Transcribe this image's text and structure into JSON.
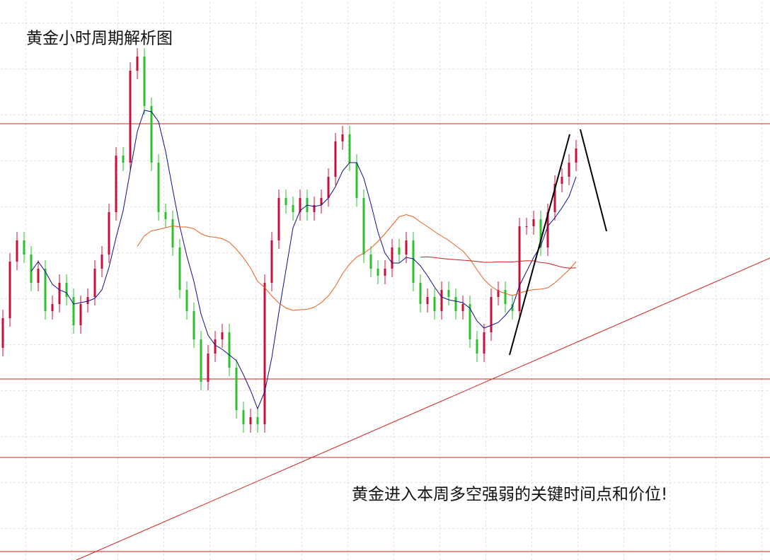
{
  "chart_data": {
    "type": "candlestick",
    "title": "黄金小时周期解析图",
    "annotation": "黄金进入本周多空强弱的关键时间点和价位!",
    "xlim": [
      -0.4,
      108.4
    ],
    "ylim": [
      0,
      792
    ],
    "up_color": "#c8103c",
    "down_color": "#2ec02e",
    "grid": true,
    "open": [
      300,
      342,
      422,
      452,
      432,
      392,
      412,
      352,
      362,
      392,
      372,
      332,
      362,
      372,
      412,
      432,
      492,
      572,
      562,
      692,
      712,
      642,
      562,
      492,
      482,
      442,
      382,
      352,
      312,
      252,
      292,
      312,
      322,
      272,
      212,
      192,
      202,
      192,
      392,
      452,
      512,
      502,
      492,
      512,
      492,
      502,
      512,
      542,
      592,
      602,
      562,
      512,
      432,
      412,
      402,
      412,
      442,
      432,
      452,
      392,
      362,
      372,
      352,
      382,
      372,
      352,
      362,
      312,
      292,
      322,
      372,
      382,
      362,
      352,
      472,
      472,
      482,
      442,
      492,
      532,
      542,
      562
    ],
    "high": [
      354,
      434,
      464,
      464,
      444,
      424,
      424,
      374,
      404,
      404,
      384,
      374,
      384,
      424,
      444,
      504,
      584,
      584,
      704,
      724,
      724,
      654,
      574,
      504,
      494,
      454,
      394,
      364,
      324,
      304,
      324,
      334,
      334,
      284,
      224,
      214,
      214,
      404,
      464,
      524,
      524,
      514,
      524,
      524,
      514,
      524,
      554,
      604,
      614,
      614,
      574,
      524,
      444,
      424,
      424,
      454,
      454,
      464,
      464,
      404,
      384,
      384,
      394,
      394,
      384,
      374,
      374,
      324,
      334,
      384,
      394,
      394,
      374,
      484,
      484,
      494,
      494,
      504,
      544,
      554,
      574,
      594
    ],
    "low": [
      288,
      330,
      410,
      420,
      380,
      380,
      340,
      340,
      350,
      360,
      320,
      320,
      350,
      360,
      400,
      420,
      480,
      550,
      550,
      680,
      630,
      550,
      480,
      470,
      430,
      370,
      340,
      300,
      240,
      240,
      280,
      300,
      260,
      200,
      180,
      180,
      180,
      180,
      380,
      440,
      490,
      480,
      480,
      480,
      480,
      490,
      500,
      530,
      580,
      550,
      500,
      420,
      400,
      390,
      390,
      400,
      420,
      420,
      380,
      350,
      350,
      340,
      340,
      360,
      340,
      340,
      300,
      280,
      280,
      310,
      360,
      350,
      340,
      340,
      460,
      460,
      430,
      430,
      480,
      520,
      530,
      550
    ],
    "close": [
      342,
      422,
      452,
      432,
      392,
      412,
      352,
      362,
      392,
      372,
      332,
      362,
      372,
      412,
      432,
      492,
      572,
      562,
      692,
      712,
      642,
      562,
      492,
      482,
      442,
      382,
      352,
      312,
      252,
      292,
      312,
      322,
      272,
      212,
      192,
      202,
      192,
      392,
      452,
      512,
      502,
      492,
      512,
      492,
      502,
      512,
      542,
      592,
      602,
      562,
      512,
      432,
      412,
      402,
      412,
      442,
      432,
      452,
      392,
      362,
      372,
      352,
      382,
      372,
      352,
      362,
      312,
      292,
      322,
      372,
      382,
      362,
      352,
      472,
      472,
      482,
      442,
      492,
      532,
      542,
      562,
      582
    ],
    "moving_averages": [
      {
        "period": 5,
        "color": "#10108c"
      },
      {
        "period": 20,
        "color": "#e8601e"
      },
      {
        "period": 60,
        "color": "#c82020"
      }
    ],
    "levels": [
      617,
      256,
      145,
      12
    ],
    "level_color": "#d42020",
    "trend_lines": [
      {
        "x": [
          10.4,
          108.4
        ],
        "y": [
          0,
          427
        ],
        "color": "#d42020",
        "width": 1
      },
      {
        "x": [
          71.6,
          80.1
        ],
        "y": [
          290,
          602
        ],
        "color": "#000000",
        "width": 2
      },
      {
        "x": [
          81.6,
          85.3
        ],
        "y": [
          609,
          465
        ],
        "color": "#000000",
        "width": 2
      }
    ]
  }
}
